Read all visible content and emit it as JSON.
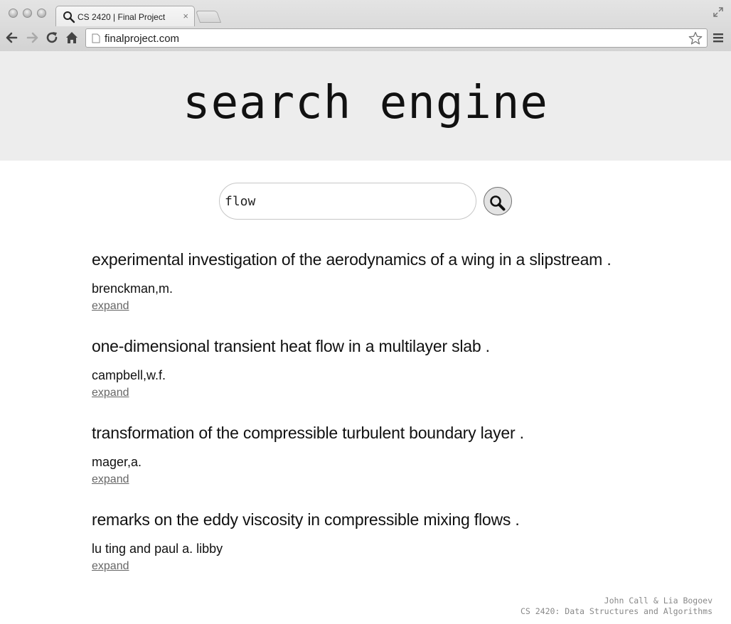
{
  "browser": {
    "tab": {
      "title": "CS 2420 | Final Project",
      "close_label": "×"
    },
    "url": "finalproject.com"
  },
  "page": {
    "site_title": "search engine",
    "search": {
      "value": "flow"
    },
    "results": [
      {
        "title": "experimental investigation of the aerodynamics of a wing in a slipstream .",
        "author": "brenckman,m.",
        "expand_label": "expand"
      },
      {
        "title": "one-dimensional transient heat flow in a multilayer slab .",
        "author": "campbell,w.f.",
        "expand_label": "expand"
      },
      {
        "title": "transformation of the compressible turbulent boundary layer .",
        "author": "mager,a.",
        "expand_label": "expand"
      },
      {
        "title": "remarks on the eddy viscosity in compressible mixing flows .",
        "author": "lu ting and paul a. libby",
        "expand_label": "expand"
      }
    ],
    "footer": {
      "line1": "John Call & Lia Bogoev",
      "line2": "CS 2420: Data Structures and Algorithms"
    }
  }
}
